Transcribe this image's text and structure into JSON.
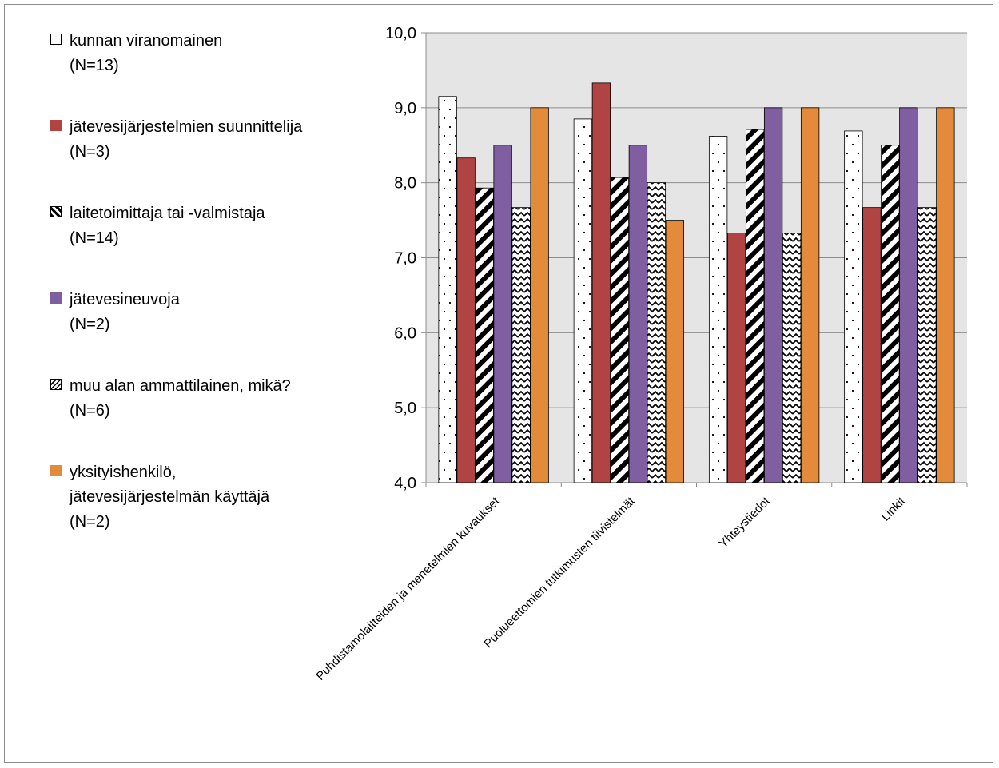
{
  "chart_data": {
    "type": "bar",
    "categories": [
      "Puhdistamolaitteiden ja menetelmien kuvaukset",
      "Puolueettomien tutkimusten tiivistelmät",
      "Yhteystiedot",
      "Linkit"
    ],
    "series": [
      {
        "name": "kunnan viranomainen\n(N=13)",
        "values": [
          9.15,
          8.85,
          8.62,
          8.69
        ],
        "color": "#ffffff",
        "pattern": "dots"
      },
      {
        "name": "jätevesijärjestelmien suunnittelija\n(N=3)",
        "values": [
          8.33,
          9.33,
          7.33,
          7.67
        ],
        "color": "#b04442",
        "pattern": "solid"
      },
      {
        "name": "laitetoimittaja tai -valmistaja\n(N=14)",
        "values": [
          7.93,
          8.07,
          8.71,
          8.5
        ],
        "color": "#000000",
        "pattern": "diagonal"
      },
      {
        "name": "jätevesineuvoja\n(N=2)",
        "values": [
          8.5,
          8.5,
          9.0,
          9.0
        ],
        "color": "#7f5fa1",
        "pattern": "solid"
      },
      {
        "name": "muu alan ammattilainen, mikä?\n(N=6)",
        "values": [
          7.67,
          8.0,
          7.33,
          7.67
        ],
        "color": "#000000",
        "pattern": "zigzag"
      },
      {
        "name": "yksityishenkilö,\njätevesijärjestelmän käyttäjä\n(N=2)",
        "values": [
          9.0,
          7.5,
          9.0,
          9.0
        ],
        "color": "#e38a3b",
        "pattern": "solid"
      }
    ],
    "ylim": [
      4.0,
      10.0
    ],
    "yticks": [
      "4,0",
      "5,0",
      "6,0",
      "7,0",
      "8,0",
      "9,0",
      "10,0"
    ],
    "grid": true,
    "legend_position": "left",
    "plot_background": "#e5e5e5",
    "title": "",
    "xlabel": "",
    "ylabel": ""
  }
}
